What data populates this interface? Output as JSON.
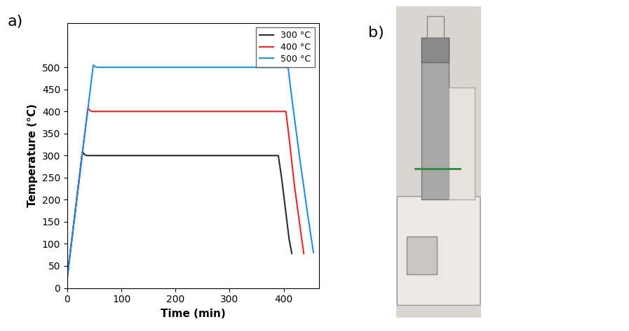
{
  "chart_data": {
    "type": "line",
    "panel_label": "a)",
    "x_label": "Time (min)",
    "y_label": "Temperature (°C)",
    "series": [
      {
        "name": "300 °C",
        "color": "#2b2b2b",
        "x": [
          0,
          28,
          32,
          36,
          390,
          396,
          404,
          410,
          415
        ],
        "values": [
          25,
          310,
          302,
          300,
          300,
          250,
          170,
          110,
          78
        ]
      },
      {
        "name": "400 °C",
        "color": "#e8262a",
        "x": [
          0,
          38,
          42,
          46,
          404,
          410,
          420,
          430,
          437
        ],
        "values": [
          25,
          408,
          402,
          400,
          400,
          340,
          230,
          140,
          78
        ]
      },
      {
        "name": "500 °C",
        "color": "#1f8fe6",
        "x": [
          0,
          48,
          52,
          56,
          408,
          415,
          430,
          445,
          455
        ],
        "values": [
          25,
          505,
          501,
          500,
          500,
          430,
          290,
          160,
          80
        ]
      }
    ],
    "xlim": [
      0,
      465
    ],
    "xticks": [
      0,
      100,
      200,
      300,
      400
    ],
    "ylim": [
      0,
      600
    ],
    "yticks": [
      0,
      50,
      100,
      150,
      200,
      250,
      300,
      350,
      400,
      450,
      500
    ],
    "legend": "upper right",
    "grid": false
  },
  "photo": {
    "panel_label": "b)"
  }
}
